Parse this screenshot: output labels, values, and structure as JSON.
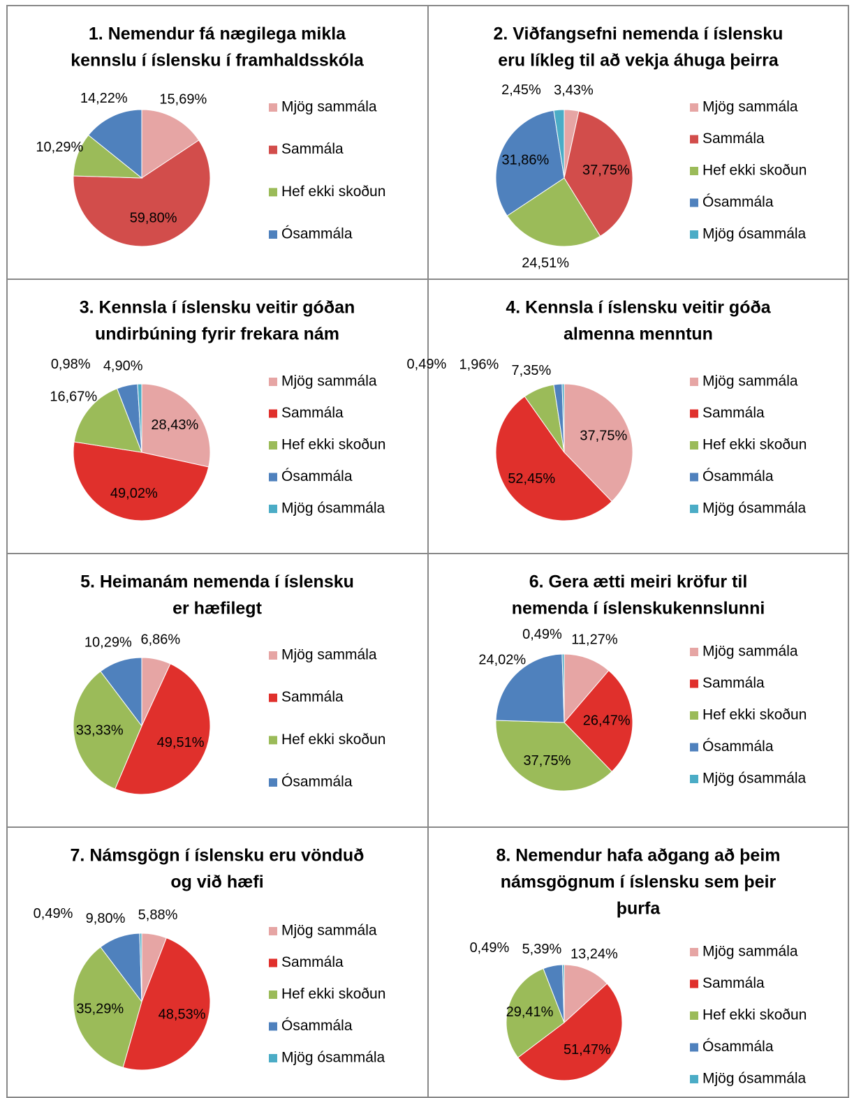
{
  "chart_data": [
    {
      "type": "pie",
      "title": [
        "1. Nemendur fá nægilega mikla",
        "kennslu í íslensku í framhaldsskóla"
      ],
      "categories": [
        "Mjög sammála",
        "Sammála",
        "Hef ekki skoðun",
        "Ósammála"
      ],
      "values": [
        15.69,
        59.8,
        10.29,
        14.22
      ],
      "value_labels": [
        "15,69%",
        "59,80%",
        "10,29%",
        "14,22%"
      ],
      "colors": [
        "#e6a5a4",
        "#d24d4b",
        "#9bbb59",
        "#4f81bd"
      ]
    },
    {
      "type": "pie",
      "title": [
        "2. Viðfangsefni nemenda í íslensku",
        "eru líkleg til að vekja áhuga þeirra"
      ],
      "categories": [
        "Mjög sammála",
        "Sammála",
        "Hef ekki skoðun",
        "Ósammála",
        "Mjög ósammála"
      ],
      "values": [
        3.43,
        37.75,
        24.51,
        31.86,
        2.45
      ],
      "value_labels": [
        "3,43%",
        "37,75%",
        "24,51%",
        "31,86%",
        "2,45%"
      ],
      "colors": [
        "#e6a5a4",
        "#d24d4b",
        "#9bbb59",
        "#4f81bd",
        "#4bacc6"
      ]
    },
    {
      "type": "pie",
      "title": [
        "3. Kennsla í íslensku veitir góðan",
        "undirbúning  fyrir frekara nám"
      ],
      "categories": [
        "Mjög sammála",
        "Sammála",
        "Hef ekki skoðun",
        "Ósammála",
        "Mjög ósammála"
      ],
      "values": [
        28.43,
        49.02,
        16.67,
        4.9,
        0.98
      ],
      "value_labels": [
        "28,43%",
        "49,02%",
        "16,67%",
        "4,90%",
        "0,98%"
      ],
      "colors": [
        "#e6a5a4",
        "#e0302c",
        "#9bbb59",
        "#4f81bd",
        "#4bacc6"
      ]
    },
    {
      "type": "pie",
      "title": [
        "4. Kennsla í íslensku veitir góða",
        "almenna menntun"
      ],
      "categories": [
        "Mjög sammála",
        "Sammála",
        "Hef ekki skoðun",
        "Ósammála",
        "Mjög ósammála"
      ],
      "values": [
        37.75,
        52.45,
        7.35,
        1.96,
        0.49
      ],
      "value_labels": [
        "37,75%",
        "52,45%",
        "7,35%",
        "1,96%",
        "0,49%"
      ],
      "colors": [
        "#e6a5a4",
        "#e0302c",
        "#9bbb59",
        "#4f81bd",
        "#4bacc6"
      ]
    },
    {
      "type": "pie",
      "title": [
        "5. Heimanám nemenda í íslensku",
        "er hæfilegt"
      ],
      "categories": [
        "Mjög sammála",
        "Sammála",
        "Hef ekki skoðun",
        "Ósammála"
      ],
      "values": [
        6.86,
        49.51,
        33.33,
        10.29
      ],
      "value_labels": [
        "6,86%",
        "49,51%",
        "33,33%",
        "10,29%"
      ],
      "colors": [
        "#e6a5a4",
        "#e0302c",
        "#9bbb59",
        "#4f81bd"
      ]
    },
    {
      "type": "pie",
      "title": [
        "6. Gera ætti meiri kröfur til",
        "nemenda í íslenskukennslunni"
      ],
      "categories": [
        "Mjög sammála",
        "Sammála",
        "Hef ekki skoðun",
        "Ósammála",
        "Mjög ósammála"
      ],
      "values": [
        11.27,
        26.47,
        37.75,
        24.02,
        0.49
      ],
      "value_labels": [
        "11,27%",
        "26,47%",
        "37,75%",
        "24,02%",
        "0,49%"
      ],
      "colors": [
        "#e6a5a4",
        "#e0302c",
        "#9bbb59",
        "#4f81bd",
        "#4bacc6"
      ]
    },
    {
      "type": "pie",
      "title": [
        "7. Námsgögn í íslensku eru vönduð",
        "og við hæfi"
      ],
      "categories": [
        "Mjög sammála",
        "Sammála",
        "Hef ekki skoðun",
        "Ósammála",
        "Mjög ósammála"
      ],
      "values": [
        5.88,
        48.53,
        35.29,
        9.8,
        0.49
      ],
      "value_labels": [
        "5,88%",
        "48,53%",
        "35,29%",
        "9,80%",
        "0,49%"
      ],
      "colors": [
        "#e6a5a4",
        "#e0302c",
        "#9bbb59",
        "#4f81bd",
        "#4bacc6"
      ]
    },
    {
      "type": "pie",
      "title": [
        "8. Nemendur hafa aðgang að þeim",
        "námsgögnum í íslensku sem þeir",
        "þurfa"
      ],
      "categories": [
        "Mjög sammála",
        "Sammála",
        "Hef ekki skoðun",
        "Ósammála",
        "Mjög ósammála"
      ],
      "values": [
        13.24,
        51.47,
        29.41,
        5.39,
        0.49
      ],
      "value_labels": [
        "13,24%",
        "51,47%",
        "29,41%",
        "5,39%",
        "0,49%"
      ],
      "colors": [
        "#e6a5a4",
        "#e0302c",
        "#9bbb59",
        "#4f81bd",
        "#4bacc6"
      ]
    }
  ]
}
